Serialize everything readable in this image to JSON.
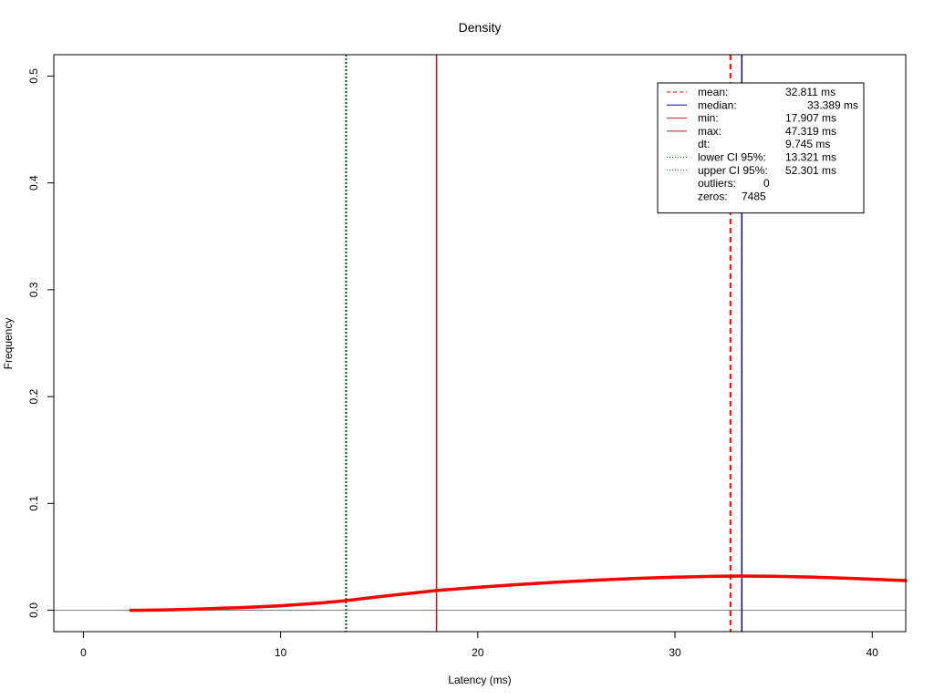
{
  "chart_data": {
    "type": "line",
    "title": "Density",
    "xlabel": "Latency (ms)",
    "ylabel": "Frequency",
    "xlim": [
      -1.5,
      41.7
    ],
    "ylim": [
      -0.02,
      0.52
    ],
    "xticks": [
      0,
      10,
      20,
      30,
      40
    ],
    "xtick_labels": [
      "0",
      "10",
      "20",
      "30",
      "40"
    ],
    "yticks": [
      0.0,
      0.1,
      0.2,
      0.3,
      0.4,
      0.5
    ],
    "ytick_labels": [
      "0.0",
      "0.1",
      "0.2",
      "0.3",
      "0.4",
      "0.5"
    ],
    "grid": false,
    "legend_position": "top-right",
    "density": {
      "color": "#ff0000",
      "x": [
        2.4,
        4,
        6,
        8,
        10,
        12,
        13.3,
        15,
        17.9,
        20,
        22,
        24,
        26,
        28,
        30,
        32,
        33.4,
        35,
        37,
        39,
        41.7
      ],
      "y": [
        0.0,
        0.0003,
        0.0012,
        0.0025,
        0.0042,
        0.0068,
        0.009,
        0.0128,
        0.0185,
        0.0215,
        0.024,
        0.0262,
        0.0282,
        0.0298,
        0.031,
        0.0318,
        0.032,
        0.0318,
        0.031,
        0.0298,
        0.0278
      ]
    },
    "vlines": [
      {
        "name": "lower-ci-line",
        "x": 13.321,
        "color": "#006400",
        "style": "dotted"
      },
      {
        "name": "min-line",
        "x": 17.907,
        "color": "#b22222",
        "style": "solid"
      },
      {
        "name": "mean-line",
        "x": 32.811,
        "color": "#ff0000",
        "style": "dashed"
      },
      {
        "name": "median-line",
        "x": 33.389,
        "color": "#0000cd",
        "style": "solid"
      }
    ],
    "legend": [
      {
        "label": "mean:",
        "value": "32.811 ms",
        "color": "#ff0000",
        "style": "dashed",
        "indent": false
      },
      {
        "label": "median:",
        "value": "33.389 ms",
        "color": "#0000cd",
        "style": "solid",
        "indent": false
      },
      {
        "label": "min:",
        "value": "17.907 ms",
        "color": "#b22222",
        "style": "solid",
        "indent": false
      },
      {
        "label": "max:",
        "value": "47.319 ms",
        "color": "#b22222",
        "style": "solid",
        "indent": false
      },
      {
        "label": "dt:",
        "value": "9.745 ms",
        "color": "",
        "style": "none",
        "indent": false
      },
      {
        "label": "lower CI 95%:",
        "value": "13.321 ms",
        "color": "#006400",
        "style": "dotted",
        "indent": false
      },
      {
        "label": "upper CI 95%:",
        "value": "52.301 ms",
        "color": "#006400",
        "style": "dotted",
        "indent": false
      },
      {
        "label": "outliers:",
        "value": "0",
        "color": "",
        "style": "none",
        "indent": true
      },
      {
        "label": "zeros:",
        "value": "7485",
        "color": "",
        "style": "none",
        "indent": false
      }
    ]
  }
}
